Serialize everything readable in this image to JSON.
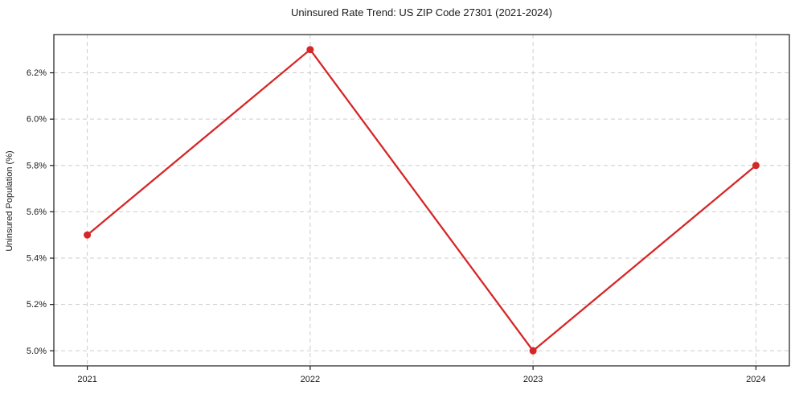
{
  "chart_data": {
    "type": "line",
    "title": "Uninsured Rate Trend: US ZIP Code 27301 (2021-2024)",
    "xlabel": "",
    "ylabel": "Uninsured Population (%)",
    "x": [
      2021,
      2022,
      2023,
      2024
    ],
    "values": [
      5.5,
      6.3,
      5.0,
      5.8
    ],
    "xticks": [
      2021,
      2022,
      2023,
      2024
    ],
    "xtick_labels": [
      "2021",
      "2022",
      "2023",
      "2024"
    ],
    "yticks": [
      5.0,
      5.2,
      5.4,
      5.6,
      5.8,
      6.0,
      6.2
    ],
    "ytick_labels": [
      "5.0%",
      "5.2%",
      "5.4%",
      "5.6%",
      "5.8%",
      "6.0%",
      "6.2%"
    ],
    "xlim": [
      2020.85,
      2024.15
    ],
    "ylim": [
      4.935,
      6.365
    ],
    "grid": true,
    "grid_style": "dashed",
    "legend": "none",
    "line_color": "#d62728",
    "marker": "circle",
    "spine_color": "#1c1c1c",
    "grid_color": "#cdcdcd",
    "background_color": "#ffffff"
  }
}
